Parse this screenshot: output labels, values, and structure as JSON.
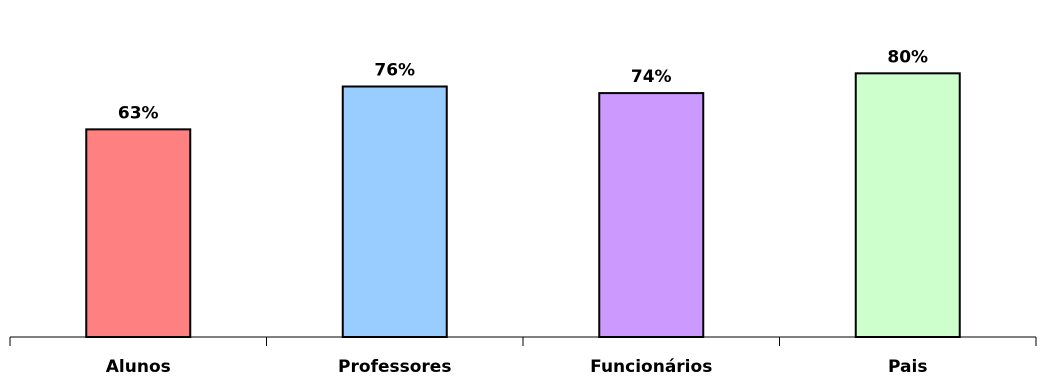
{
  "chart_data": {
    "type": "bar",
    "categories": [
      "Alunos",
      "Professores",
      "Funcionários",
      "Pais"
    ],
    "values": [
      63,
      76,
      74,
      80
    ],
    "value_labels": [
      "63%",
      "76%",
      "74%",
      "80%"
    ],
    "colors": [
      "#FF8080",
      "#99CCFF",
      "#CC99FF",
      "#CCFFCC"
    ],
    "title": "",
    "xlabel": "",
    "ylabel": "",
    "ylim": [
      0,
      100
    ],
    "grid": false,
    "legend": "none"
  }
}
